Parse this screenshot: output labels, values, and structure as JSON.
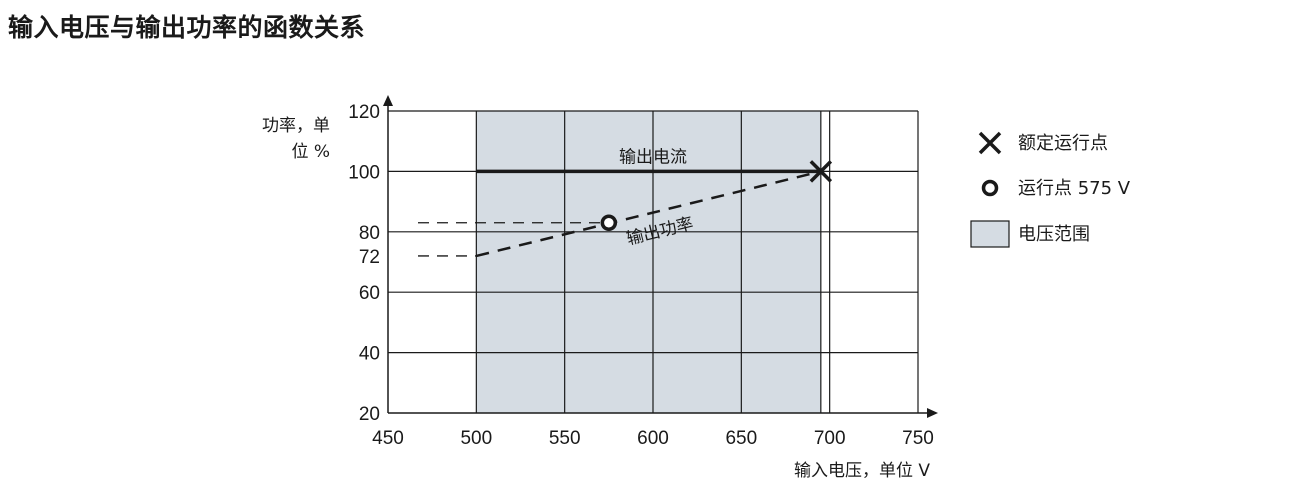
{
  "title": "输入电压与输出功率的函数关系",
  "chart_data": {
    "type": "line",
    "title": "输入电压与输出功率的函数关系",
    "xlabel": "输入电压，单位 V",
    "ylabel_line1": "功率，单",
    "ylabel_line2": "位 %",
    "xlim": [
      450,
      750
    ],
    "ylim": [
      20,
      120
    ],
    "x_ticks": [
      450,
      500,
      550,
      600,
      650,
      700,
      750
    ],
    "y_ticks": [
      20,
      40,
      60,
      72,
      80,
      100,
      120
    ],
    "grid": true,
    "voltage_range": [
      500,
      695
    ],
    "series": [
      {
        "name": "输出电流",
        "style": "solid",
        "x": [
          500,
          695
        ],
        "y": [
          100,
          100
        ]
      },
      {
        "name": "输出功率",
        "style": "dashed",
        "x": [
          500,
          695
        ],
        "y": [
          72,
          100
        ]
      }
    ],
    "reference_lines": [
      {
        "y": 72,
        "x_from": 450,
        "x_to": 500,
        "style": "dashed"
      },
      {
        "y": 83,
        "x_from": 450,
        "x_to": 575,
        "style": "dashed"
      }
    ],
    "points": [
      {
        "name": "额定运行点",
        "marker": "x",
        "x": 695,
        "y": 100
      },
      {
        "name": "运行点 575 V",
        "marker": "circle",
        "x": 575,
        "y": 83
      }
    ],
    "legend": {
      "position": "right",
      "items": [
        {
          "label": "额定运行点",
          "marker": "x"
        },
        {
          "label": "运行点 575 V",
          "marker": "circle"
        },
        {
          "label": "电压范围",
          "marker": "box"
        }
      ]
    },
    "colors": {
      "range_fill": "#d5dce3",
      "line": "#1a1a1a",
      "grid": "#1a1a1a"
    }
  }
}
